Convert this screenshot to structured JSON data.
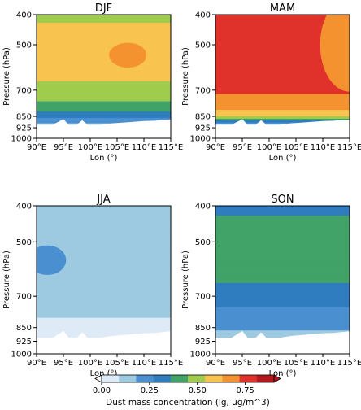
{
  "chart_data": {
    "type": "contour",
    "panels": [
      {
        "title": "DJF",
        "xlabel": "Lon (°)",
        "ylabel": "Pressure (hPa)",
        "xlim": [
          90,
          115
        ],
        "ylim": [
          1000,
          400
        ],
        "levels": [
          {
            "p": 400,
            "value": 0.53
          },
          {
            "p": 430,
            "value": 0.62
          },
          {
            "p": 550,
            "value": 0.65
          },
          {
            "p": 700,
            "value": 0.58
          },
          {
            "p": 800,
            "value": 0.45
          },
          {
            "p": 850,
            "value": 0.32
          },
          {
            "p": 925,
            "value": 0.12
          },
          {
            "p": 1000,
            "value": 0.0
          }
        ],
        "features": [
          {
            "type": "maximum",
            "lon": 107,
            "p": 540,
            "value": 0.78
          }
        ]
      },
      {
        "title": "MAM",
        "xlabel": "Lon (°)",
        "ylabel": "Pressure (hPa)",
        "xlim": [
          90,
          115
        ],
        "ylim": [
          1000,
          400
        ],
        "levels": [
          {
            "p": 400,
            "value": 0.88
          },
          {
            "p": 600,
            "value": 0.86
          },
          {
            "p": 700,
            "value": 0.82
          },
          {
            "p": 800,
            "value": 0.72
          },
          {
            "p": 850,
            "value": 0.6
          },
          {
            "p": 925,
            "value": 0.0
          }
        ],
        "features": [
          {
            "type": "gradient",
            "lon": 115,
            "p": 500,
            "value": 0.75
          }
        ]
      },
      {
        "title": "JJA",
        "xlabel": "Lon (°)",
        "ylabel": "Pressure (hPa)",
        "xlim": [
          90,
          115
        ],
        "ylim": [
          1000,
          400
        ],
        "levels": [
          {
            "p": 400,
            "value": 0.12
          },
          {
            "p": 600,
            "value": 0.15
          },
          {
            "p": 800,
            "value": 0.1
          },
          {
            "p": 925,
            "value": 0.05
          },
          {
            "p": 1000,
            "value": 0.0
          }
        ],
        "features": [
          {
            "type": "maximum",
            "lon": 92,
            "p": 560,
            "value": 0.28
          }
        ]
      },
      {
        "title": "SON",
        "xlabel": "Lon (°)",
        "ylabel": "Pressure (hPa)",
        "xlim": [
          90,
          115
        ],
        "ylim": [
          1000,
          400
        ],
        "levels": [
          {
            "p": 400,
            "value": 0.3
          },
          {
            "p": 430,
            "value": 0.42
          },
          {
            "p": 600,
            "value": 0.44
          },
          {
            "p": 750,
            "value": 0.3
          },
          {
            "p": 850,
            "value": 0.22
          },
          {
            "p": 925,
            "value": 0.1
          },
          {
            "p": 1000,
            "value": 0.0
          }
        ],
        "features": []
      }
    ],
    "x_ticks": [
      "90°E",
      "95°E",
      "100°E",
      "105°E",
      "110°E",
      "115°E"
    ],
    "x_tick_values": [
      90,
      95,
      100,
      105,
      110,
      115
    ],
    "y_ticks": [
      "400",
      "500",
      "700",
      "850",
      "925",
      "1000"
    ],
    "y_tick_values": [
      400,
      500,
      700,
      850,
      925,
      1000
    ],
    "colorbar": {
      "label": "Dust mass concentration (lg, ug/m^3)",
      "ticks": [
        "0.00",
        "0.25",
        "0.50",
        "0.75"
      ],
      "tick_values": [
        0,
        0.25,
        0.5,
        0.75
      ],
      "bounds": [
        0,
        0.1,
        0.2,
        0.3,
        0.4,
        0.5,
        0.6,
        0.7,
        0.8,
        0.9
      ],
      "colors": [
        "#deebf7",
        "#9ecae1",
        "#4a90d0",
        "#2f7dbf",
        "#41a368",
        "#9fcc4c",
        "#f8c34e",
        "#f3922e",
        "#e0322a",
        "#b5171e"
      ],
      "extend": "both"
    },
    "terrain": {
      "color": "#ffffff"
    }
  }
}
